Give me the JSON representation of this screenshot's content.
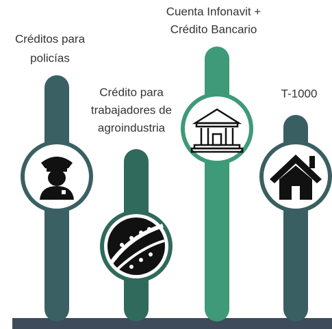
{
  "items": [
    {
      "label": [
        "Créditos para",
        "policías"
      ]
    },
    {
      "label": [
        "Crédito para",
        "trabajadores de",
        "agroindustria"
      ]
    },
    {
      "label": [
        "Cuenta Infonavit +",
        "Crédito Bancario"
      ]
    },
    {
      "label": [
        "T-1000"
      ]
    }
  ]
}
